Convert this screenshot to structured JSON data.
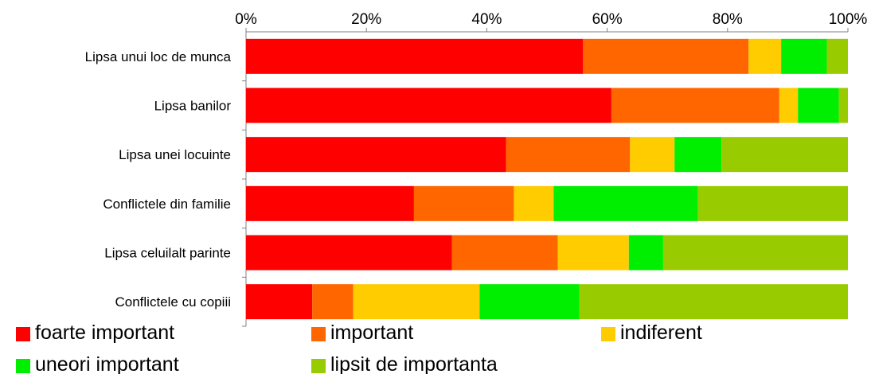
{
  "chart_data": {
    "type": "bar",
    "orientation": "horizontal",
    "stacked": "percent",
    "categories": [
      "Lipsa unui loc de munca",
      "Lipsa banilor",
      "Lipsa unei locuinte",
      "Conflictele din familie",
      "Lipsa celuilalt parinte",
      "Conflictele cu copiii"
    ],
    "series": [
      {
        "name": "foarte important",
        "color": "#ff0000",
        "values": [
          56,
          60.7,
          43.2,
          27.9,
          34.2,
          11
        ]
      },
      {
        "name": "important",
        "color": "#ff6600",
        "values": [
          27.5,
          27.9,
          20.6,
          16.6,
          17.6,
          6.8
        ]
      },
      {
        "name": "indiferent",
        "color": "#ffcc00",
        "values": [
          5.4,
          3.1,
          7.4,
          6.6,
          11.8,
          21
        ]
      },
      {
        "name": "uneori important",
        "color": "#00ee00",
        "values": [
          7.6,
          6.8,
          7.8,
          24,
          5.7,
          16.6
        ]
      },
      {
        "name": "lipsit de importanta",
        "color": "#99cc00",
        "values": [
          3.5,
          1.5,
          21,
          24.9,
          30.7,
          44.6
        ]
      }
    ],
    "xticks": [
      "0%",
      "20%",
      "40%",
      "60%",
      "80%",
      "100%"
    ],
    "xlim": [
      0,
      100
    ],
    "xaxis_position": "top",
    "grid": false,
    "legend_position": "bottom",
    "title": "",
    "xlabel": "",
    "ylabel": ""
  }
}
